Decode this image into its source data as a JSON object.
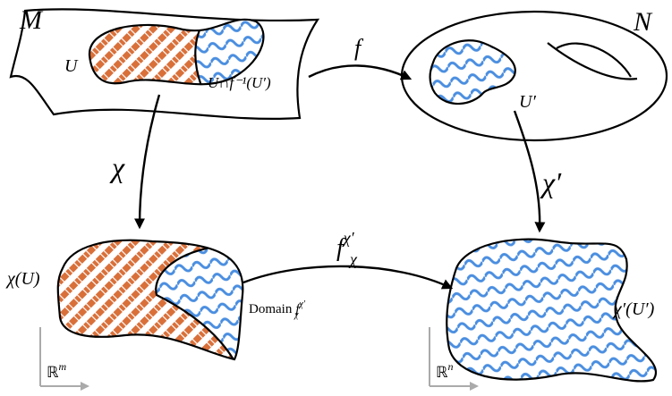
{
  "labels": {
    "manifold_m": "M",
    "manifold_n": "N",
    "set_u": "U",
    "intersection": "U∩f⁻¹(U′)",
    "map_f": "f",
    "set_u_prime": "U′",
    "chart_chi": "χ",
    "chart_chi_prime": "χ′",
    "chi_u": "χ(U)",
    "chi_prime_u_prime": "χ′(U′)"
  },
  "transition": {
    "base": "f",
    "sup": "χ′",
    "sub": "χ"
  },
  "domain": {
    "text": "Domain",
    "base": "f",
    "sup": "χ′",
    "sub": "χ"
  },
  "spaces": {
    "rm": {
      "base": "ℝ",
      "sup": "m"
    },
    "rn": {
      "base": "ℝ",
      "sup": "n"
    }
  }
}
